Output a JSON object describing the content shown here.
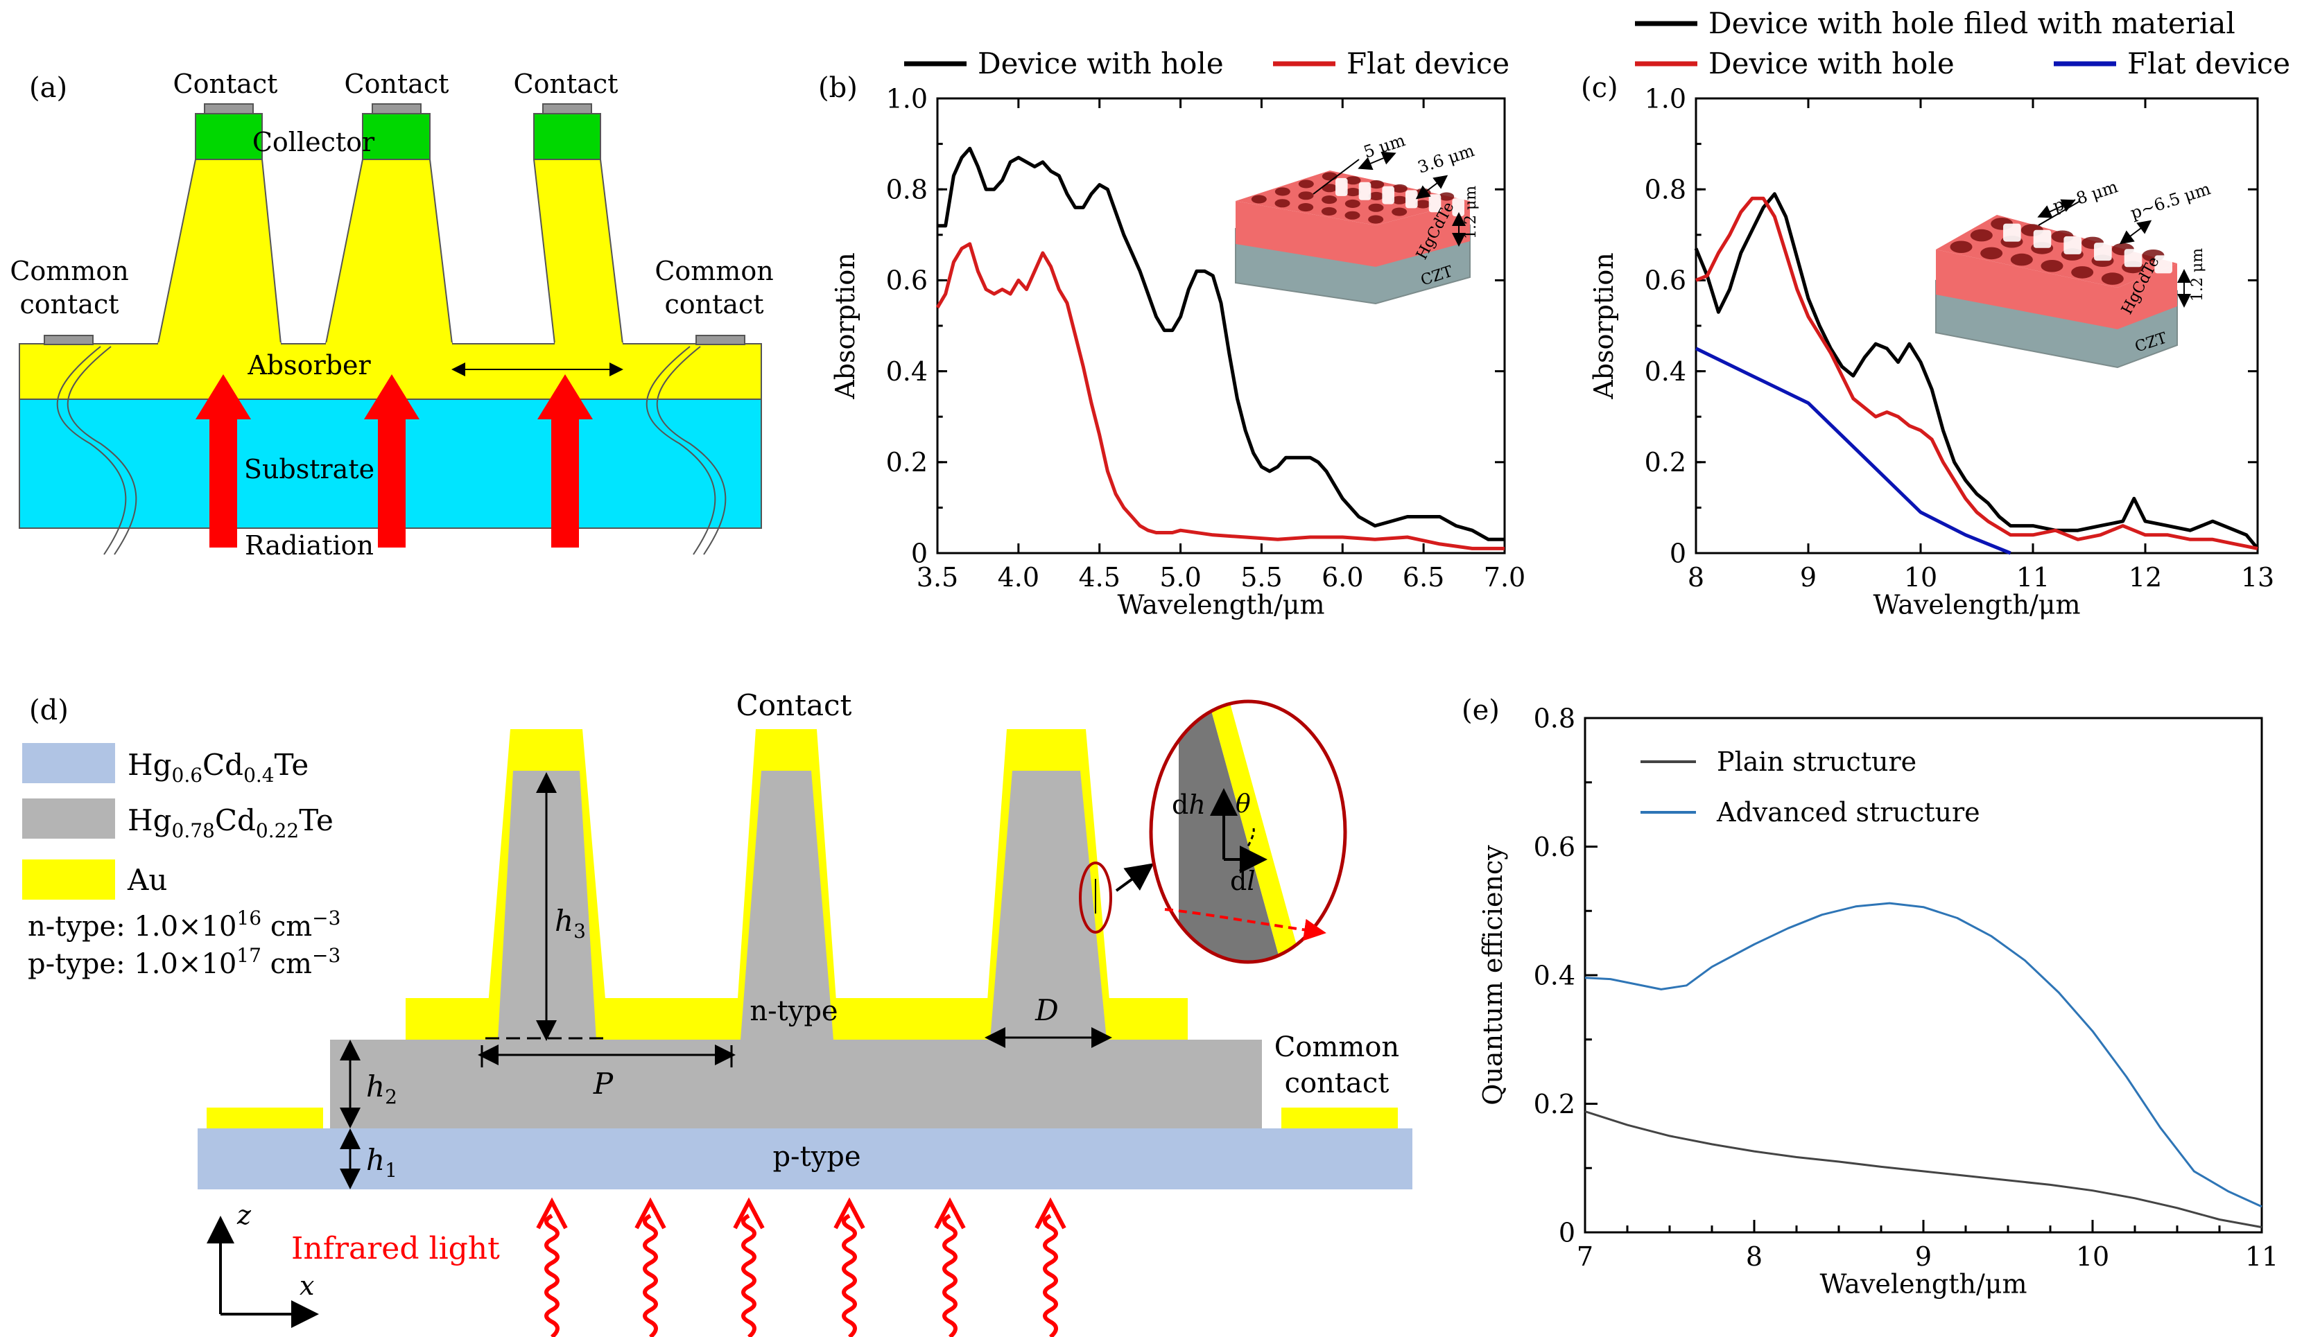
{
  "panels": {
    "a": {
      "label": "(a)",
      "contacts": [
        "Contact",
        "Contact",
        "Contact"
      ],
      "collector": "Collector",
      "common_left": [
        "Common",
        "contact"
      ],
      "common_right": [
        "Common",
        "contact"
      ],
      "absorber": "Absorber",
      "substrate": "Substrate",
      "radiation": "Radiation"
    },
    "d": {
      "label": "(d)",
      "legend": [
        {
          "text": "Hg",
          "sub1": "0.6",
          "mid": "Cd",
          "sub2": "0.4",
          "tail": "Te",
          "color": "#b0c4e4"
        },
        {
          "text": "Hg",
          "sub1": "0.78",
          "mid": "Cd",
          "sub2": "0.22",
          "tail": "Te",
          "color": "#b4b4b4"
        },
        {
          "text": "Au",
          "color": "#ffff00"
        }
      ],
      "ntype_doping": "n-type: 1.0×10",
      "ntype_exp": "16",
      "ptype_doping": "p-type: 1.0×10",
      "ptype_exp": "17",
      "unit": "cm",
      "unit_exp": "−3",
      "contact": "Contact",
      "ntype": "n-type",
      "ptype": "p-type",
      "common": [
        "Common",
        "contact"
      ],
      "infrared": "Infrared light",
      "h1": "h",
      "h1s": "1",
      "h2": "h",
      "h2s": "2",
      "h3": "h",
      "h3s": "3",
      "P": "P",
      "D": "D",
      "dh": "d",
      "dh2": "h",
      "dl": "d",
      "dl2": "l",
      "theta": "θ",
      "z": "z",
      "x": "x"
    }
  },
  "colors": {
    "yellow": "#ffff00",
    "green": "#00d700",
    "cyan": "#00e5ff",
    "red": "#ff0000",
    "black": "#000000",
    "dark_red": "#d51c1c",
    "blue": "#0a14b4",
    "plain": "#444444",
    "advanced": "#2e75b6"
  },
  "chart_data": [
    {
      "panel": "(b)",
      "type": "line",
      "xlabel": "Wavelength/μm",
      "ylabel": "Absorption",
      "xlim": [
        3.5,
        7.0
      ],
      "ylim": [
        0,
        1.0
      ],
      "xticks": [
        "3.5",
        "4.0",
        "4.5",
        "5.0",
        "5.5",
        "6.0",
        "6.5",
        "7.0"
      ],
      "yticks": [
        "0",
        "0.2",
        "0.4",
        "0.6",
        "0.8",
        "1.0"
      ],
      "legend_position": "top",
      "inset": {
        "dims": [
          "5 μm",
          "3.6 μm",
          "1.2 μm"
        ],
        "layers": [
          "HgCdTe",
          "CZT"
        ]
      },
      "series": [
        {
          "name": "Device with hole",
          "color": "#000000",
          "x": [
            3.5,
            3.55,
            3.6,
            3.65,
            3.7,
            3.75,
            3.8,
            3.85,
            3.9,
            3.95,
            4.0,
            4.05,
            4.1,
            4.15,
            4.2,
            4.25,
            4.3,
            4.35,
            4.4,
            4.45,
            4.5,
            4.55,
            4.6,
            4.65,
            4.7,
            4.75,
            4.8,
            4.85,
            4.9,
            4.95,
            5.0,
            5.05,
            5.1,
            5.15,
            5.2,
            5.25,
            5.3,
            5.35,
            5.4,
            5.45,
            5.5,
            5.55,
            5.6,
            5.65,
            5.7,
            5.75,
            5.8,
            5.85,
            5.9,
            5.95,
            6.0,
            6.1,
            6.2,
            6.3,
            6.4,
            6.5,
            6.6,
            6.7,
            6.8,
            6.9,
            7.0
          ],
          "y": [
            0.72,
            0.72,
            0.83,
            0.87,
            0.89,
            0.85,
            0.8,
            0.8,
            0.82,
            0.86,
            0.87,
            0.86,
            0.85,
            0.86,
            0.84,
            0.83,
            0.79,
            0.76,
            0.76,
            0.79,
            0.81,
            0.8,
            0.75,
            0.7,
            0.66,
            0.62,
            0.57,
            0.52,
            0.49,
            0.49,
            0.52,
            0.58,
            0.62,
            0.62,
            0.61,
            0.55,
            0.44,
            0.34,
            0.27,
            0.22,
            0.19,
            0.18,
            0.19,
            0.21,
            0.21,
            0.21,
            0.21,
            0.2,
            0.18,
            0.15,
            0.12,
            0.08,
            0.06,
            0.07,
            0.08,
            0.08,
            0.08,
            0.06,
            0.05,
            0.03,
            0.03
          ]
        },
        {
          "name": "Flat device",
          "color": "#d51c1c",
          "x": [
            3.5,
            3.55,
            3.6,
            3.65,
            3.7,
            3.75,
            3.8,
            3.85,
            3.9,
            3.95,
            4.0,
            4.05,
            4.1,
            4.15,
            4.2,
            4.25,
            4.3,
            4.35,
            4.4,
            4.45,
            4.5,
            4.55,
            4.6,
            4.65,
            4.7,
            4.75,
            4.8,
            4.85,
            4.9,
            4.95,
            5.0,
            5.2,
            5.4,
            5.6,
            5.8,
            6.0,
            6.2,
            6.4,
            6.6,
            6.8,
            7.0
          ],
          "y": [
            0.54,
            0.57,
            0.64,
            0.67,
            0.68,
            0.62,
            0.58,
            0.57,
            0.58,
            0.57,
            0.6,
            0.58,
            0.62,
            0.66,
            0.63,
            0.58,
            0.55,
            0.48,
            0.41,
            0.33,
            0.26,
            0.18,
            0.13,
            0.1,
            0.08,
            0.06,
            0.05,
            0.045,
            0.045,
            0.045,
            0.05,
            0.04,
            0.035,
            0.03,
            0.035,
            0.035,
            0.03,
            0.035,
            0.02,
            0.01,
            0.01
          ]
        }
      ]
    },
    {
      "panel": "(c)",
      "type": "line",
      "xlabel": "Wavelength/μm",
      "ylabel": "Absorption",
      "xlim": [
        8,
        13
      ],
      "ylim": [
        0,
        1.0
      ],
      "xticks": [
        "8",
        "9",
        "10",
        "11",
        "12",
        "13"
      ],
      "yticks": [
        "0",
        "0.2",
        "0.4",
        "0.6",
        "0.8",
        "1.0"
      ],
      "legend_position": "top",
      "inset": {
        "dims": [
          "p~8 μm",
          "p~6.5 μm",
          "1.2 μm"
        ],
        "layers": [
          "HgCdTe",
          "CZT"
        ]
      },
      "series": [
        {
          "name": "Device with hole filed with material",
          "color": "#000000",
          "x": [
            8.0,
            8.1,
            8.2,
            8.3,
            8.4,
            8.5,
            8.6,
            8.7,
            8.8,
            8.9,
            9.0,
            9.1,
            9.2,
            9.3,
            9.4,
            9.5,
            9.6,
            9.7,
            9.8,
            9.9,
            10.0,
            10.1,
            10.2,
            10.3,
            10.4,
            10.5,
            10.6,
            10.7,
            10.8,
            10.9,
            11.0,
            11.2,
            11.4,
            11.6,
            11.8,
            11.9,
            12.0,
            12.2,
            12.4,
            12.6,
            12.8,
            12.9,
            13.0
          ],
          "y": [
            0.67,
            0.61,
            0.53,
            0.58,
            0.66,
            0.71,
            0.76,
            0.79,
            0.74,
            0.65,
            0.56,
            0.5,
            0.45,
            0.41,
            0.39,
            0.43,
            0.46,
            0.45,
            0.42,
            0.46,
            0.42,
            0.36,
            0.27,
            0.2,
            0.16,
            0.13,
            0.11,
            0.08,
            0.06,
            0.06,
            0.06,
            0.05,
            0.05,
            0.06,
            0.07,
            0.12,
            0.07,
            0.06,
            0.05,
            0.07,
            0.05,
            0.04,
            0.01
          ]
        },
        {
          "name": "Device with hole",
          "color": "#d51c1c",
          "x": [
            8.0,
            8.1,
            8.2,
            8.3,
            8.4,
            8.5,
            8.6,
            8.7,
            8.8,
            8.9,
            9.0,
            9.1,
            9.2,
            9.3,
            9.4,
            9.5,
            9.6,
            9.7,
            9.8,
            9.9,
            10.0,
            10.1,
            10.2,
            10.3,
            10.4,
            10.5,
            10.6,
            10.8,
            11.0,
            11.2,
            11.4,
            11.6,
            11.8,
            12.0,
            12.2,
            12.4,
            12.6,
            12.8,
            13.0
          ],
          "y": [
            0.6,
            0.61,
            0.66,
            0.7,
            0.75,
            0.78,
            0.78,
            0.74,
            0.66,
            0.58,
            0.52,
            0.48,
            0.44,
            0.39,
            0.34,
            0.32,
            0.3,
            0.31,
            0.3,
            0.28,
            0.27,
            0.25,
            0.2,
            0.16,
            0.12,
            0.09,
            0.07,
            0.04,
            0.04,
            0.05,
            0.03,
            0.04,
            0.06,
            0.04,
            0.04,
            0.03,
            0.03,
            0.02,
            0.01
          ]
        },
        {
          "name": "Flat device",
          "color": "#0a14b4",
          "x": [
            8.0,
            8.5,
            9.0,
            9.5,
            10.0,
            10.4,
            10.8
          ],
          "y": [
            0.45,
            0.39,
            0.33,
            0.21,
            0.09,
            0.04,
            0.0
          ]
        }
      ]
    },
    {
      "panel": "(e)",
      "type": "line",
      "xlabel": "Wavelength/μm",
      "ylabel": "Quantum efficiency",
      "xlim": [
        7,
        11
      ],
      "ylim": [
        0,
        0.8
      ],
      "xticks": [
        "7",
        "8",
        "9",
        "10",
        "11"
      ],
      "yticks": [
        "0",
        "0.2",
        "0.4",
        "0.6",
        "0.8"
      ],
      "legend_position": "top-left",
      "series": [
        {
          "name": "Plain structure",
          "color": "#444444",
          "x": [
            7.0,
            7.25,
            7.5,
            7.75,
            8.0,
            8.25,
            8.5,
            8.75,
            9.0,
            9.25,
            9.5,
            9.75,
            10.0,
            10.25,
            10.5,
            10.75,
            11.0
          ],
          "y": [
            0.188,
            0.167,
            0.15,
            0.137,
            0.126,
            0.117,
            0.11,
            0.102,
            0.095,
            0.088,
            0.081,
            0.074,
            0.065,
            0.053,
            0.038,
            0.02,
            0.008
          ]
        },
        {
          "name": "Advanced structure",
          "color": "#2e75b6",
          "x": [
            7.0,
            7.15,
            7.3,
            7.45,
            7.6,
            7.75,
            8.0,
            8.2,
            8.4,
            8.6,
            8.8,
            9.0,
            9.2,
            9.4,
            9.6,
            9.8,
            10.0,
            10.2,
            10.4,
            10.6,
            10.8,
            11.0
          ],
          "y": [
            0.396,
            0.394,
            0.386,
            0.378,
            0.384,
            0.413,
            0.448,
            0.473,
            0.494,
            0.507,
            0.512,
            0.506,
            0.489,
            0.461,
            0.423,
            0.373,
            0.313,
            0.242,
            0.163,
            0.095,
            0.064,
            0.04
          ]
        }
      ]
    }
  ]
}
